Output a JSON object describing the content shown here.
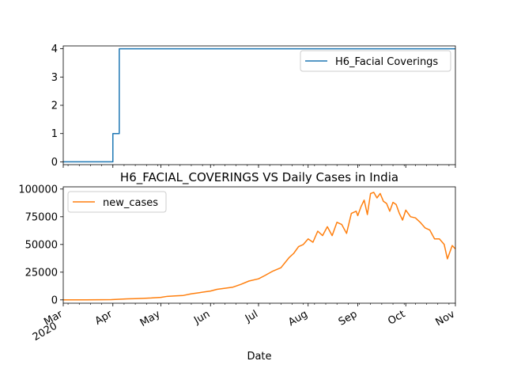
{
  "chart_data": [
    {
      "type": "line",
      "title": "",
      "xlabel": "",
      "ylabel": "",
      "x_range": [
        "2020-03-01",
        "2020-11-01"
      ],
      "ylim": [
        -0.1,
        4.1
      ],
      "yticks": [
        0,
        1,
        2,
        3,
        4
      ],
      "grid": false,
      "legend": "upper-right",
      "series": [
        {
          "name": "H6_Facial Coverings",
          "color": "#1f77b4",
          "step": true,
          "x": [
            "2020-03-01",
            "2020-04-01",
            "2020-04-04",
            "2020-04-05",
            "2020-11-01"
          ],
          "y": [
            0,
            1,
            1,
            4,
            4
          ]
        }
      ]
    },
    {
      "type": "line",
      "title": "H6_FACIAL_COVERINGS VS Daily Cases in India",
      "xlabel": "Date",
      "ylabel": "",
      "x_range": [
        "2020-03-01",
        "2020-11-01"
      ],
      "ylim": [
        -3000,
        102000
      ],
      "yticks": [
        0,
        25000,
        50000,
        75000,
        100000
      ],
      "xticks": [
        {
          "date": "2020-03-01",
          "label": "Mar",
          "sub": "2020"
        },
        {
          "date": "2020-04-01",
          "label": "Apr"
        },
        {
          "date": "2020-05-01",
          "label": "May"
        },
        {
          "date": "2020-06-01",
          "label": "Jun"
        },
        {
          "date": "2020-07-01",
          "label": "Jul"
        },
        {
          "date": "2020-08-01",
          "label": "Aug"
        },
        {
          "date": "2020-09-01",
          "label": "Sep"
        },
        {
          "date": "2020-10-01",
          "label": "Oct"
        },
        {
          "date": "2020-11-01",
          "label": "Nov"
        }
      ],
      "grid": false,
      "legend": "upper-left",
      "series": [
        {
          "name": "new_cases",
          "color": "#ff7f0e",
          "x": [
            "2020-03-01",
            "2020-03-15",
            "2020-03-31",
            "2020-04-05",
            "2020-04-10",
            "2020-04-15",
            "2020-04-20",
            "2020-04-25",
            "2020-05-01",
            "2020-05-05",
            "2020-05-10",
            "2020-05-15",
            "2020-05-20",
            "2020-05-25",
            "2020-06-01",
            "2020-06-05",
            "2020-06-10",
            "2020-06-15",
            "2020-06-20",
            "2020-06-25",
            "2020-07-01",
            "2020-07-05",
            "2020-07-10",
            "2020-07-15",
            "2020-07-20",
            "2020-07-23",
            "2020-07-26",
            "2020-07-29",
            "2020-08-01",
            "2020-08-04",
            "2020-08-07",
            "2020-08-10",
            "2020-08-13",
            "2020-08-16",
            "2020-08-19",
            "2020-08-22",
            "2020-08-25",
            "2020-08-28",
            "2020-08-31",
            "2020-09-01",
            "2020-09-03",
            "2020-09-05",
            "2020-09-07",
            "2020-09-09",
            "2020-09-11",
            "2020-09-13",
            "2020-09-15",
            "2020-09-17",
            "2020-09-19",
            "2020-09-21",
            "2020-09-23",
            "2020-09-25",
            "2020-09-27",
            "2020-09-29",
            "2020-10-01",
            "2020-10-04",
            "2020-10-07",
            "2020-10-10",
            "2020-10-13",
            "2020-10-16",
            "2020-10-19",
            "2020-10-22",
            "2020-10-25",
            "2020-10-27",
            "2020-10-30",
            "2020-11-01"
          ],
          "y": [
            0,
            60,
            200,
            600,
            900,
            1100,
            1400,
            1700,
            2300,
            3200,
            3600,
            4000,
            5500,
            6500,
            8000,
            9500,
            10500,
            11500,
            14000,
            17000,
            19000,
            22000,
            26000,
            29000,
            38000,
            42000,
            48000,
            50000,
            55000,
            52000,
            62000,
            58000,
            66000,
            58000,
            70000,
            68000,
            60000,
            78000,
            80000,
            76000,
            84000,
            90000,
            77000,
            96000,
            97000,
            92000,
            96000,
            89000,
            87000,
            80000,
            88000,
            86000,
            78000,
            72000,
            81000,
            75000,
            74000,
            70000,
            65000,
            63000,
            55000,
            55000,
            50000,
            37000,
            49000,
            46000
          ]
        }
      ]
    }
  ]
}
